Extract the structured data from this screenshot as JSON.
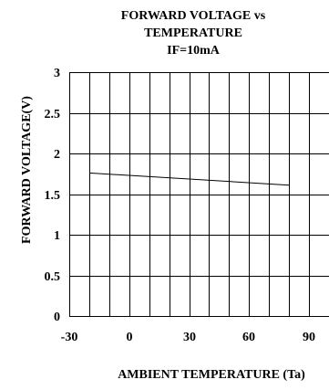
{
  "chart_data": {
    "type": "line",
    "title_lines": [
      "FORWARD VOLTAGE vs",
      "TEMPERATURE",
      "IF=10mA"
    ],
    "xlabel": "AMBIENT TEMPERATURE (Ta)",
    "ylabel": "FORWARD VOLTAGE(V)",
    "xlim": [
      -30,
      100
    ],
    "ylim": [
      0,
      3
    ],
    "x_ticks": [
      -30,
      0,
      30,
      60,
      90
    ],
    "x_tick_labels": [
      "-30",
      "0",
      "30",
      "60",
      "90"
    ],
    "y_ticks": [
      0,
      0.5,
      1,
      1.5,
      2,
      2.5,
      3
    ],
    "y_tick_labels": [
      "0",
      "0.5",
      "1",
      "1.5",
      "2",
      "2.5",
      "3"
    ],
    "grid": true,
    "series": [
      {
        "x": [
          -20,
          80
        ],
        "y": [
          1.76,
          1.61
        ]
      }
    ]
  }
}
